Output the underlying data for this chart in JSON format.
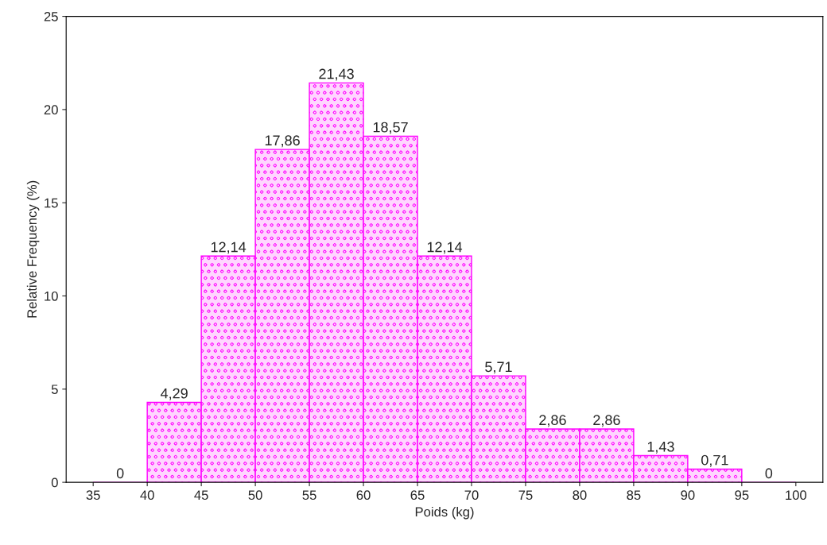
{
  "chart_data": {
    "type": "histogram",
    "xlabel": "Poids (kg)",
    "ylabel": "Relative Frequency (%)",
    "bins": [
      35,
      40,
      45,
      50,
      55,
      60,
      65,
      70,
      75,
      80,
      85,
      90,
      95,
      100
    ],
    "values": [
      0,
      4.29,
      12.14,
      17.86,
      21.43,
      18.57,
      12.14,
      5.71,
      2.86,
      2.86,
      1.43,
      0.71,
      0
    ],
    "value_labels": [
      "0",
      "4,29",
      "12,14",
      "17,86",
      "21,43",
      "18,57",
      "12,14",
      "5,71",
      "2,86",
      "2,86",
      "1,43",
      "0,71",
      "0"
    ],
    "color": "#ff00ff",
    "xlim": [
      32.5,
      102.5
    ],
    "xticks": [
      35,
      40,
      45,
      50,
      55,
      60,
      65,
      70,
      75,
      80,
      85,
      90,
      95,
      100
    ],
    "ylim": [
      0,
      25
    ],
    "yticks": [
      0,
      5,
      10,
      15,
      20,
      25
    ],
    "grid": false
  }
}
